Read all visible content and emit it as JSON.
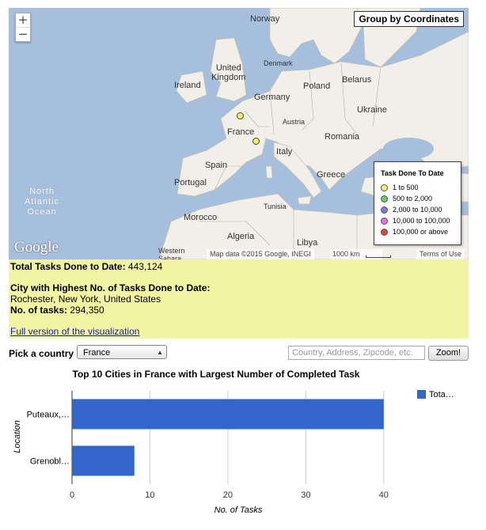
{
  "map": {
    "zoom_in_label": "+",
    "zoom_out_label": "−",
    "group_button_label": "Group by Coordinates",
    "country_labels": {
      "norway": "Norway",
      "denmark": "Denmark",
      "united_kingdom": "United\nKingdom",
      "ireland": "Ireland",
      "germany": "Germany",
      "poland": "Poland",
      "belarus": "Belarus",
      "ukraine": "Ukraine",
      "france": "France",
      "austria": "Austria",
      "romania": "Romania",
      "italy": "Italy",
      "spain": "Spain",
      "portugal": "Portugal",
      "greece": "Greece",
      "tunisia": "Tunisia",
      "morocco": "Morocco",
      "algeria": "Algeria",
      "libya": "Libya",
      "western_sahara": "Western\nSahara"
    },
    "ocean_label": "North\nAtlantic\nOcean",
    "legend": {
      "title": "Task Done To Date",
      "items": [
        {
          "label": "1 to 500",
          "color": "#f4f06a"
        },
        {
          "label": "500 to 2,000",
          "color": "#5fd35f"
        },
        {
          "label": "2,000 to 10,000",
          "color": "#7a7ae0"
        },
        {
          "label": "10,000 to 100,000",
          "color": "#ee6ee6"
        },
        {
          "label": "100,000 or above",
          "color": "#e84040"
        }
      ]
    },
    "logo_text": "Google",
    "attribution": "Map data ©2015 Google, INEGI",
    "scale_label": "1000 km",
    "terms_label": "Terms of Use",
    "colors": {
      "water": "#a5bfdd",
      "land": "#f2efe9",
      "marker": "#f4f06a"
    }
  },
  "stats": {
    "total_label": "Total Tasks Done to Date:",
    "total_value": " 443,124",
    "highest_city_label": "City with Highest No. of Tasks Done to Date:",
    "highest_city_value": "Rochester, New York, United States",
    "tasks_label": "No. of tasks:",
    "tasks_value": " 294,350",
    "full_version_link": "Full version of the visualization",
    "background": "#f1f4a3"
  },
  "controls": {
    "pick_country_label": "Pick a country",
    "selected_country": "France",
    "search_placeholder": "Country, Address, Zipcode, etc.",
    "zoom_button_label": "Zoom!"
  },
  "chart_data": {
    "type": "bar",
    "orientation": "horizontal",
    "title": "Top 10 Cities in France with Largest Number of Completed Task",
    "categories": [
      "Puteaux,…",
      "Grenobl…"
    ],
    "series": [
      {
        "name": "Tota…",
        "values": [
          40,
          8
        ],
        "color": "#3366cc"
      }
    ],
    "xlabel": "No. of Tasks",
    "ylabel": "Location",
    "xlim": [
      0,
      45
    ],
    "xticks": [
      "0",
      "10",
      "20",
      "30",
      "40"
    ],
    "grid": true,
    "legend_position": "right"
  }
}
